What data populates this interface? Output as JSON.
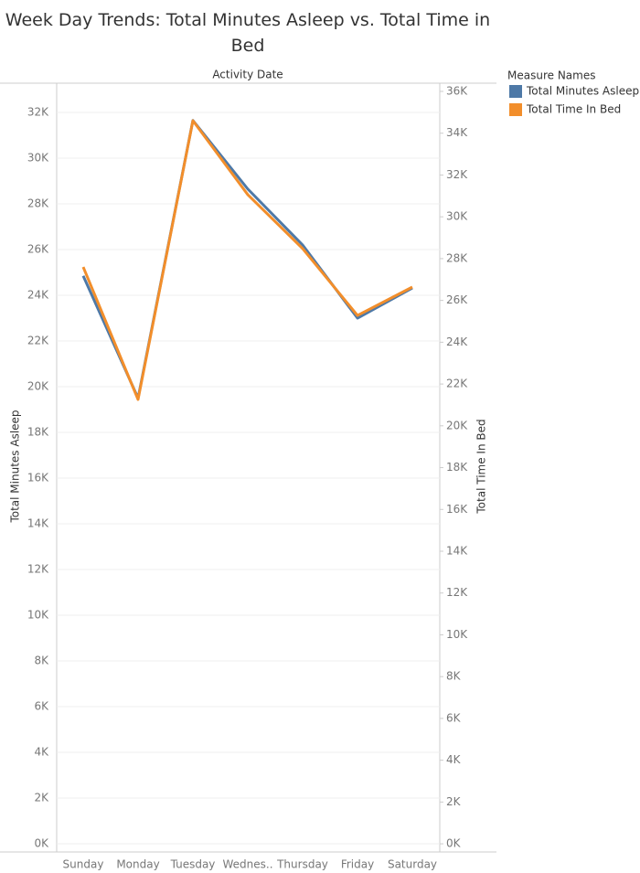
{
  "chart_data": {
    "type": "line",
    "title": "Week Day Trends: Total Minutes Asleep vs. Total Time in Bed",
    "x_label": "Activity Date",
    "y_label": "Total Minutes Asleep",
    "y2_label": "Total Time In Bed",
    "legend_title": "Measure Names",
    "legend_position": "right",
    "grid": true,
    "categories": [
      "Sunday",
      "Monday",
      "Tuesday",
      "Wednes..",
      "Thursday",
      "Friday",
      "Saturday"
    ],
    "series": [
      {
        "name": "Total Minutes Asleep",
        "color": "#4e79a7",
        "values": [
          24850,
          19500,
          31650,
          28650,
          26200,
          23000,
          24320
        ]
      },
      {
        "name": "Total Time In Bed",
        "color": "#f28e2b",
        "axis": "y2",
        "values": [
          27600,
          21260,
          34600,
          31060,
          28480,
          25280,
          26640
        ]
      }
    ],
    "ylim": [
      -360,
      33240
    ],
    "yticks": [
      {
        "value": 0,
        "label": "0K"
      },
      {
        "value": 2000,
        "label": "2K"
      },
      {
        "value": 4000,
        "label": "4K"
      },
      {
        "value": 6000,
        "label": "6K"
      },
      {
        "value": 8000,
        "label": "8K"
      },
      {
        "value": 10000,
        "label": "10K"
      },
      {
        "value": 12000,
        "label": "12K"
      },
      {
        "value": 14000,
        "label": "14K"
      },
      {
        "value": 16000,
        "label": "16K"
      },
      {
        "value": 18000,
        "label": "18K"
      },
      {
        "value": 20000,
        "label": "20K"
      },
      {
        "value": 22000,
        "label": "22K"
      },
      {
        "value": 24000,
        "label": "24K"
      },
      {
        "value": 26000,
        "label": "26K"
      },
      {
        "value": 28000,
        "label": "28K"
      },
      {
        "value": 30000,
        "label": "30K"
      },
      {
        "value": 32000,
        "label": "32K"
      }
    ],
    "y2lim": [
      -390,
      36350
    ],
    "y2ticks": [
      {
        "value": 0,
        "label": "0K"
      },
      {
        "value": 2000,
        "label": "2K"
      },
      {
        "value": 4000,
        "label": "4K"
      },
      {
        "value": 6000,
        "label": "6K"
      },
      {
        "value": 8000,
        "label": "8K"
      },
      {
        "value": 10000,
        "label": "10K"
      },
      {
        "value": 12000,
        "label": "12K"
      },
      {
        "value": 14000,
        "label": "14K"
      },
      {
        "value": 16000,
        "label": "16K"
      },
      {
        "value": 18000,
        "label": "18K"
      },
      {
        "value": 20000,
        "label": "20K"
      },
      {
        "value": 22000,
        "label": "22K"
      },
      {
        "value": 24000,
        "label": "24K"
      },
      {
        "value": 26000,
        "label": "26K"
      },
      {
        "value": 28000,
        "label": "28K"
      },
      {
        "value": 30000,
        "label": "30K"
      },
      {
        "value": 32000,
        "label": "32K"
      },
      {
        "value": 34000,
        "label": "34K"
      },
      {
        "value": 36000,
        "label": "36K"
      }
    ]
  }
}
